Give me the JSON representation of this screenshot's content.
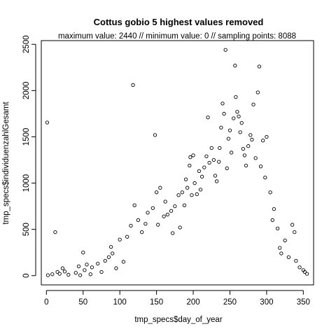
{
  "chart_data": {
    "type": "scatter",
    "title": "Cottus gobio  5 highest values removed",
    "subtitle": "maximum value: 2440  //  minimum value: 0  // sampling points: 8088",
    "xlabel": "tmp_specs$day_of_year",
    "ylabel": "tmp_specs$individuenzahlGesamt",
    "xlim": [
      -7,
      364
    ],
    "ylim": [
      -100,
      2540
    ],
    "x_ticks": [
      0,
      50,
      100,
      150,
      200,
      250,
      300,
      350
    ],
    "y_ticks": [
      0,
      500,
      1000,
      1500,
      2000,
      2500
    ],
    "x_tick_labels": [
      "0",
      "50",
      "100",
      "150",
      "200",
      "250",
      "300",
      "350"
    ],
    "y_tick_labels": [
      "0",
      "500",
      "1000",
      "1500",
      "2000",
      "2500"
    ],
    "grid": false,
    "marker": "open-circle",
    "marker_color": "#000000",
    "points": [
      [
        1,
        1655
      ],
      [
        2,
        5
      ],
      [
        8,
        15
      ],
      [
        12,
        470
      ],
      [
        15,
        40
      ],
      [
        18,
        20
      ],
      [
        22,
        80
      ],
      [
        25,
        45
      ],
      [
        30,
        10
      ],
      [
        40,
        30
      ],
      [
        44,
        100
      ],
      [
        46,
        5
      ],
      [
        50,
        250
      ],
      [
        52,
        60
      ],
      [
        55,
        120
      ],
      [
        60,
        15
      ],
      [
        62,
        90
      ],
      [
        70,
        130
      ],
      [
        75,
        40
      ],
      [
        80,
        160
      ],
      [
        85,
        200
      ],
      [
        88,
        310
      ],
      [
        90,
        240
      ],
      [
        95,
        80
      ],
      [
        100,
        390
      ],
      [
        105,
        150
      ],
      [
        110,
        420
      ],
      [
        115,
        540
      ],
      [
        118,
        2060
      ],
      [
        120,
        760
      ],
      [
        125,
        600
      ],
      [
        130,
        470
      ],
      [
        135,
        560
      ],
      [
        138,
        680
      ],
      [
        145,
        730
      ],
      [
        148,
        1520
      ],
      [
        150,
        900
      ],
      [
        152,
        550
      ],
      [
        155,
        950
      ],
      [
        160,
        640
      ],
      [
        162,
        800
      ],
      [
        165,
        660
      ],
      [
        170,
        700
      ],
      [
        172,
        460
      ],
      [
        175,
        750
      ],
      [
        180,
        870
      ],
      [
        182,
        520
      ],
      [
        185,
        900
      ],
      [
        188,
        760
      ],
      [
        190,
        1040
      ],
      [
        192,
        950
      ],
      [
        195,
        1190
      ],
      [
        196,
        1280
      ],
      [
        198,
        870
      ],
      [
        200,
        1300
      ],
      [
        202,
        1000
      ],
      [
        205,
        880
      ],
      [
        208,
        1130
      ],
      [
        210,
        930
      ],
      [
        212,
        1070
      ],
      [
        215,
        1170
      ],
      [
        218,
        1290
      ],
      [
        220,
        1710
      ],
      [
        222,
        1220
      ],
      [
        225,
        1380
      ],
      [
        228,
        1250
      ],
      [
        230,
        1080
      ],
      [
        232,
        1020
      ],
      [
        235,
        1230
      ],
      [
        236,
        1380
      ],
      [
        238,
        1600
      ],
      [
        240,
        1860
      ],
      [
        242,
        1750
      ],
      [
        244,
        2440
      ],
      [
        246,
        1160
      ],
      [
        248,
        1480
      ],
      [
        250,
        1570
      ],
      [
        252,
        1330
      ],
      [
        255,
        1700
      ],
      [
        257,
        2270
      ],
      [
        258,
        1930
      ],
      [
        260,
        1770
      ],
      [
        262,
        1720
      ],
      [
        264,
        1550
      ],
      [
        266,
        1650
      ],
      [
        268,
        1370
      ],
      [
        270,
        1300
      ],
      [
        272,
        1190
      ],
      [
        275,
        1400
      ],
      [
        278,
        1520
      ],
      [
        280,
        1470
      ],
      [
        282,
        1850
      ],
      [
        285,
        1270
      ],
      [
        288,
        1980
      ],
      [
        290,
        2260
      ],
      [
        292,
        1180
      ],
      [
        295,
        1460
      ],
      [
        298,
        1060
      ],
      [
        300,
        1500
      ],
      [
        305,
        900
      ],
      [
        308,
        600
      ],
      [
        310,
        720
      ],
      [
        315,
        510
      ],
      [
        318,
        300
      ],
      [
        320,
        240
      ],
      [
        325,
        380
      ],
      [
        330,
        200
      ],
      [
        335,
        550
      ],
      [
        338,
        470
      ],
      [
        340,
        160
      ],
      [
        345,
        90
      ],
      [
        350,
        60
      ],
      [
        352,
        40
      ],
      [
        355,
        20
      ]
    ]
  },
  "ui": {
    "plot_color": "#000000",
    "background": "#ffffff"
  }
}
